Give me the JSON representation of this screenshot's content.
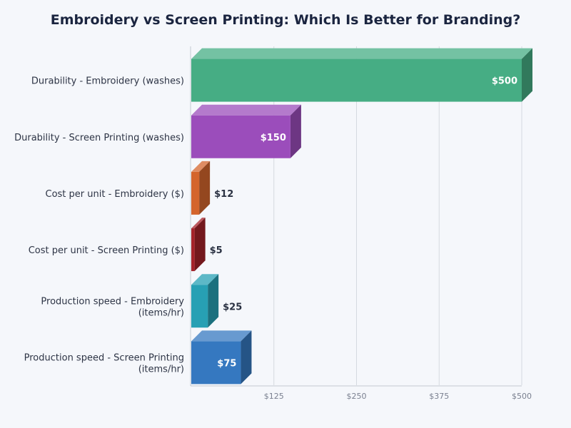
{
  "chart_data": {
    "type": "bar",
    "orientation": "horizontal",
    "style": "3d",
    "title": "Embroidery vs Screen Printing: Which Is Better for Branding?",
    "categories": [
      [
        "Durability - Embroidery (washes)"
      ],
      [
        "Durability - Screen Printing (washes)"
      ],
      [
        "Cost per unit - Embroidery ($)"
      ],
      [
        "Cost per unit - Screen Printing ($)"
      ],
      [
        "Production speed - Embroidery",
        "(items/hr)"
      ],
      [
        "Production speed - Screen Printing",
        "(items/hr)"
      ]
    ],
    "values": [
      500,
      150,
      12,
      5,
      25,
      75
    ],
    "data_labels": [
      "$500",
      "$150",
      "$12",
      "$5",
      "$25",
      "$75"
    ],
    "colors": [
      "#46ad84",
      "#9b4dbb",
      "#d4652d",
      "#a5222a",
      "#27a0b4",
      "#3578c0"
    ],
    "xlim": [
      0,
      500
    ],
    "xticks": [
      125,
      250,
      375,
      500
    ],
    "xtick_labels": [
      "$125",
      "$250",
      "$375",
      "$500"
    ],
    "grid": true,
    "xlabel": "",
    "ylabel": ""
  }
}
